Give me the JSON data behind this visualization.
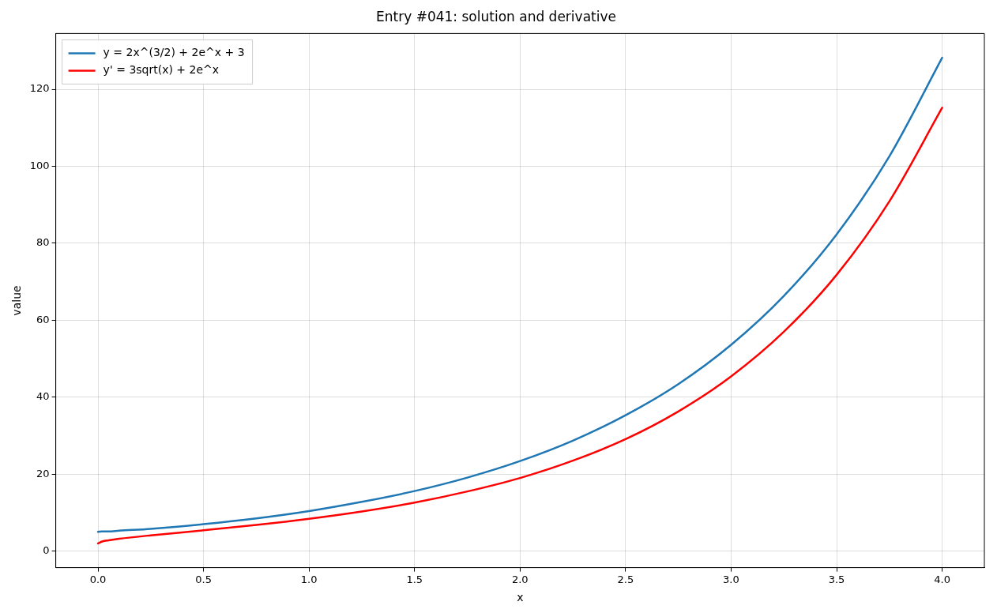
{
  "chart_data": {
    "type": "line",
    "title": "Entry #041: solution and derivative",
    "xlabel": "x",
    "ylabel": "value",
    "x": [
      0,
      0.02,
      0.05,
      0.1,
      0.25,
      0.5,
      0.75,
      1,
      1.25,
      1.5,
      1.75,
      2,
      2.25,
      2.5,
      2.75,
      3,
      3.25,
      3.5,
      3.75,
      4
    ],
    "series": [
      {
        "name": "y = 2x^(3/2) + 2e^x + 3",
        "color": "#1f77b4",
        "values": [
          5,
          5.1,
          5.1,
          5.3,
          5.8,
          7,
          8.5,
          10.4,
          12.8,
          15.6,
          19.1,
          23.4,
          28.7,
          35.3,
          43.4,
          53.6,
          66.3,
          82.3,
          102.6,
          128.2
        ]
      },
      {
        "name": "y' = 3sqrt(x) + 2e^x",
        "color": "#ff0000",
        "values": [
          2,
          2.5,
          2.8,
          3.2,
          4.1,
          5.4,
          6.8,
          8.4,
          10.3,
          12.6,
          15.5,
          19,
          23.5,
          29.1,
          36.3,
          45.4,
          57,
          71.8,
          90.9,
          115.2
        ]
      }
    ],
    "xlim": [
      -0.2,
      4.2
    ],
    "xticks": [
      {
        "value": 0,
        "label": "0.0"
      },
      {
        "value": 0.5,
        "label": "0.5"
      },
      {
        "value": 1,
        "label": "1.0"
      },
      {
        "value": 1.5,
        "label": "1.5"
      },
      {
        "value": 2,
        "label": "2.0"
      },
      {
        "value": 2.5,
        "label": "2.5"
      },
      {
        "value": 3,
        "label": "3.0"
      },
      {
        "value": 3.5,
        "label": "3.5"
      },
      {
        "value": 4,
        "label": "4.0"
      }
    ],
    "ylim": [
      -4.3,
      134.5
    ],
    "yticks": [
      0,
      20,
      40,
      60,
      80,
      100,
      120
    ],
    "grid": true,
    "legend": "top left",
    "marker": "none",
    "line_style": "solid"
  }
}
